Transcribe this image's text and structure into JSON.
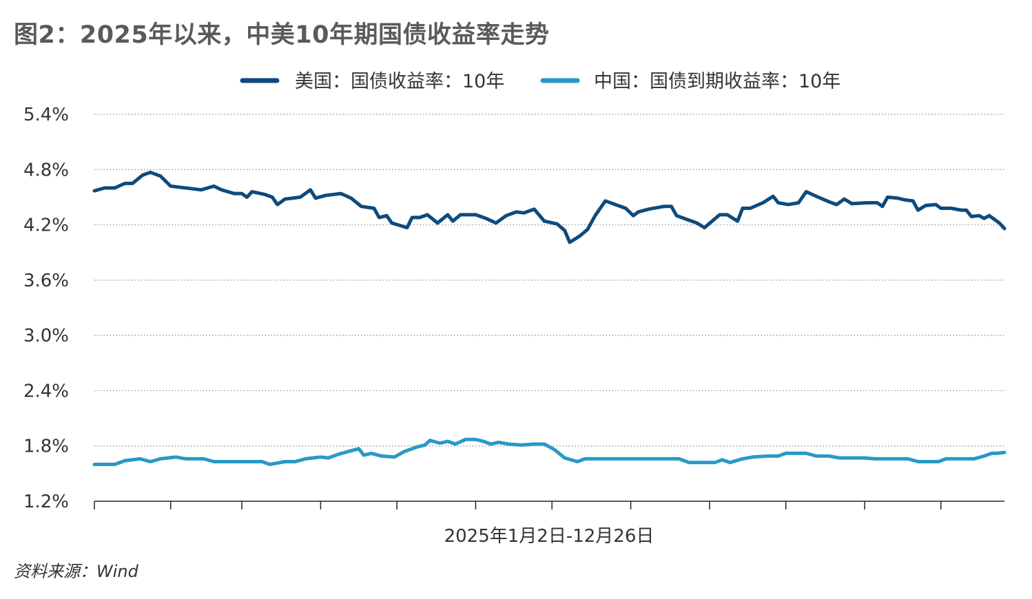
{
  "title": "图2：2025年以来，中美10年期国债收益率走势",
  "source": "资料来源：Wind",
  "colors": {
    "us": "#0e4a7d",
    "cn": "#2899c6",
    "grid": "#8a8a8a",
    "axis": "#222222",
    "text": "#333333"
  },
  "chart_data": {
    "type": "line",
    "title": "图2：2025年以来，中美10年期国债收益率走势",
    "xlabel": "2025年1月2日-12月26日",
    "ylabel": "",
    "x_range": [
      "2025-01-02",
      "2025-12-26"
    ],
    "ylim": [
      1.2,
      5.4
    ],
    "y_ticks": [
      "5.4%",
      "4.8%",
      "4.2%",
      "3.6%",
      "3.0%",
      "2.4%",
      "1.8%",
      "1.2%"
    ],
    "y_tick_values": [
      5.4,
      4.8,
      4.2,
      3.6,
      3.0,
      2.4,
      1.8,
      1.2
    ],
    "grid": "horizontal dotted",
    "legend_position": "top-center",
    "series": [
      {
        "name": "美国：国债收益率：10年",
        "color": "#0e4a7d",
        "points": [
          [
            "2025-01-02",
            4.57
          ],
          [
            "2025-01-06",
            4.6
          ],
          [
            "2025-01-10",
            4.6
          ],
          [
            "2025-01-14",
            4.65
          ],
          [
            "2025-01-17",
            4.65
          ],
          [
            "2025-01-21",
            4.74
          ],
          [
            "2025-01-24",
            4.77
          ],
          [
            "2025-01-28",
            4.73
          ],
          [
            "2025-02-01",
            4.62
          ],
          [
            "2025-02-07",
            4.6
          ],
          [
            "2025-02-13",
            4.58
          ],
          [
            "2025-02-18",
            4.62
          ],
          [
            "2025-02-21",
            4.58
          ],
          [
            "2025-02-26",
            4.54
          ],
          [
            "2025-03-01",
            4.54
          ],
          [
            "2025-03-03",
            4.5
          ],
          [
            "2025-03-05",
            4.56
          ],
          [
            "2025-03-10",
            4.53
          ],
          [
            "2025-03-13",
            4.5
          ],
          [
            "2025-03-15",
            4.42
          ],
          [
            "2025-03-18",
            4.48
          ],
          [
            "2025-03-24",
            4.5
          ],
          [
            "2025-03-28",
            4.58
          ],
          [
            "2025-03-30",
            4.49
          ],
          [
            "2025-04-03",
            4.52
          ],
          [
            "2025-04-09",
            4.54
          ],
          [
            "2025-04-13",
            4.49
          ],
          [
            "2025-04-17",
            4.4
          ],
          [
            "2025-04-22",
            4.38
          ],
          [
            "2025-04-24",
            4.28
          ],
          [
            "2025-04-27",
            4.3
          ],
          [
            "2025-04-29",
            4.22
          ],
          [
            "2025-05-05",
            4.17
          ],
          [
            "2025-05-07",
            4.28
          ],
          [
            "2025-05-10",
            4.28
          ],
          [
            "2025-05-13",
            4.31
          ],
          [
            "2025-05-17",
            4.22
          ],
          [
            "2025-05-21",
            4.31
          ],
          [
            "2025-05-23",
            4.24
          ],
          [
            "2025-05-26",
            4.31
          ],
          [
            "2025-06-01",
            4.31
          ],
          [
            "2025-06-05",
            4.27
          ],
          [
            "2025-06-09",
            4.22
          ],
          [
            "2025-06-13",
            4.3
          ],
          [
            "2025-06-17",
            4.34
          ],
          [
            "2025-06-20",
            4.33
          ],
          [
            "2025-06-24",
            4.37
          ],
          [
            "2025-06-28",
            4.24
          ],
          [
            "2025-07-03",
            4.21
          ],
          [
            "2025-07-06",
            4.14
          ],
          [
            "2025-07-08",
            4.01
          ],
          [
            "2025-07-12",
            4.08
          ],
          [
            "2025-07-15",
            4.15
          ],
          [
            "2025-07-18",
            4.3
          ],
          [
            "2025-07-22",
            4.46
          ],
          [
            "2025-07-26",
            4.42
          ],
          [
            "2025-07-30",
            4.38
          ],
          [
            "2025-08-02",
            4.3
          ],
          [
            "2025-08-04",
            4.34
          ],
          [
            "2025-08-08",
            4.37
          ],
          [
            "2025-08-14",
            4.4
          ],
          [
            "2025-08-17",
            4.4
          ],
          [
            "2025-08-19",
            4.3
          ],
          [
            "2025-08-24",
            4.25
          ],
          [
            "2025-08-27",
            4.22
          ],
          [
            "2025-08-30",
            4.17
          ],
          [
            "2025-09-02",
            4.24
          ],
          [
            "2025-09-05",
            4.31
          ],
          [
            "2025-09-08",
            4.31
          ],
          [
            "2025-09-12",
            4.24
          ],
          [
            "2025-09-14",
            4.38
          ],
          [
            "2025-09-17",
            4.38
          ],
          [
            "2025-09-22",
            4.44
          ],
          [
            "2025-09-26",
            4.51
          ],
          [
            "2025-09-28",
            4.44
          ],
          [
            "2025-10-02",
            4.42
          ],
          [
            "2025-10-06",
            4.44
          ],
          [
            "2025-10-09",
            4.56
          ],
          [
            "2025-10-13",
            4.51
          ],
          [
            "2025-10-18",
            4.45
          ],
          [
            "2025-10-21",
            4.42
          ],
          [
            "2025-10-24",
            4.48
          ],
          [
            "2025-10-27",
            4.43
          ],
          [
            "2025-11-02",
            4.44
          ],
          [
            "2025-11-06",
            4.44
          ],
          [
            "2025-11-08",
            4.4
          ],
          [
            "2025-11-10",
            4.5
          ],
          [
            "2025-11-14",
            4.49
          ],
          [
            "2025-11-17",
            4.47
          ],
          [
            "2025-11-20",
            4.46
          ],
          [
            "2025-11-22",
            4.36
          ],
          [
            "2025-11-25",
            4.41
          ],
          [
            "2025-11-29",
            4.42
          ],
          [
            "2025-12-01",
            4.38
          ],
          [
            "2025-12-05",
            4.38
          ],
          [
            "2025-12-09",
            4.36
          ],
          [
            "2025-12-11",
            4.36
          ],
          [
            "2025-12-13",
            4.29
          ],
          [
            "2025-12-16",
            4.3
          ],
          [
            "2025-12-18",
            4.27
          ],
          [
            "2025-12-20",
            4.3
          ],
          [
            "2025-12-24",
            4.22
          ],
          [
            "2025-12-26",
            4.16
          ]
        ]
      },
      {
        "name": "中国：国债到期收益率：10年",
        "color": "#2899c6",
        "points": [
          [
            "2025-01-02",
            1.6
          ],
          [
            "2025-01-10",
            1.6
          ],
          [
            "2025-01-14",
            1.64
          ],
          [
            "2025-01-20",
            1.66
          ],
          [
            "2025-01-24",
            1.63
          ],
          [
            "2025-01-28",
            1.66
          ],
          [
            "2025-02-03",
            1.68
          ],
          [
            "2025-02-07",
            1.66
          ],
          [
            "2025-02-14",
            1.66
          ],
          [
            "2025-02-18",
            1.63
          ],
          [
            "2025-02-24",
            1.63
          ],
          [
            "2025-03-02",
            1.63
          ],
          [
            "2025-03-09",
            1.63
          ],
          [
            "2025-03-12",
            1.6
          ],
          [
            "2025-03-18",
            1.63
          ],
          [
            "2025-03-22",
            1.63
          ],
          [
            "2025-03-26",
            1.66
          ],
          [
            "2025-04-01",
            1.68
          ],
          [
            "2025-04-04",
            1.67
          ],
          [
            "2025-04-08",
            1.71
          ],
          [
            "2025-04-12",
            1.74
          ],
          [
            "2025-04-16",
            1.77
          ],
          [
            "2025-04-18",
            1.7
          ],
          [
            "2025-04-21",
            1.72
          ],
          [
            "2025-04-25",
            1.69
          ],
          [
            "2025-04-30",
            1.68
          ],
          [
            "2025-05-04",
            1.74
          ],
          [
            "2025-05-09",
            1.79
          ],
          [
            "2025-05-12",
            1.81
          ],
          [
            "2025-05-14",
            1.86
          ],
          [
            "2025-05-18",
            1.83
          ],
          [
            "2025-05-21",
            1.85
          ],
          [
            "2025-05-24",
            1.82
          ],
          [
            "2025-05-28",
            1.87
          ],
          [
            "2025-06-01",
            1.87
          ],
          [
            "2025-06-04",
            1.85
          ],
          [
            "2025-06-07",
            1.82
          ],
          [
            "2025-06-10",
            1.84
          ],
          [
            "2025-06-14",
            1.82
          ],
          [
            "2025-06-19",
            1.81
          ],
          [
            "2025-06-24",
            1.82
          ],
          [
            "2025-06-28",
            1.82
          ],
          [
            "2025-07-02",
            1.76
          ],
          [
            "2025-07-06",
            1.67
          ],
          [
            "2025-07-11",
            1.63
          ],
          [
            "2025-07-14",
            1.66
          ],
          [
            "2025-07-22",
            1.66
          ],
          [
            "2025-07-31",
            1.66
          ],
          [
            "2025-08-07",
            1.66
          ],
          [
            "2025-08-14",
            1.66
          ],
          [
            "2025-08-20",
            1.66
          ],
          [
            "2025-08-24",
            1.62
          ],
          [
            "2025-08-28",
            1.62
          ],
          [
            "2025-09-03",
            1.62
          ],
          [
            "2025-09-06",
            1.65
          ],
          [
            "2025-09-09",
            1.62
          ],
          [
            "2025-09-14",
            1.66
          ],
          [
            "2025-09-18",
            1.68
          ],
          [
            "2025-09-24",
            1.69
          ],
          [
            "2025-09-28",
            1.69
          ],
          [
            "2025-10-01",
            1.72
          ],
          [
            "2025-10-05",
            1.72
          ],
          [
            "2025-10-09",
            1.72
          ],
          [
            "2025-10-13",
            1.69
          ],
          [
            "2025-10-18",
            1.69
          ],
          [
            "2025-10-22",
            1.67
          ],
          [
            "2025-10-26",
            1.67
          ],
          [
            "2025-11-01",
            1.67
          ],
          [
            "2025-11-05",
            1.66
          ],
          [
            "2025-11-10",
            1.66
          ],
          [
            "2025-11-14",
            1.66
          ],
          [
            "2025-11-18",
            1.66
          ],
          [
            "2025-11-22",
            1.63
          ],
          [
            "2025-11-26",
            1.63
          ],
          [
            "2025-11-30",
            1.63
          ],
          [
            "2025-12-03",
            1.66
          ],
          [
            "2025-12-07",
            1.66
          ],
          [
            "2025-12-10",
            1.66
          ],
          [
            "2025-12-14",
            1.66
          ],
          [
            "2025-12-18",
            1.69
          ],
          [
            "2025-12-21",
            1.72
          ],
          [
            "2025-12-23",
            1.72
          ],
          [
            "2025-12-26",
            1.73
          ]
        ]
      }
    ]
  }
}
